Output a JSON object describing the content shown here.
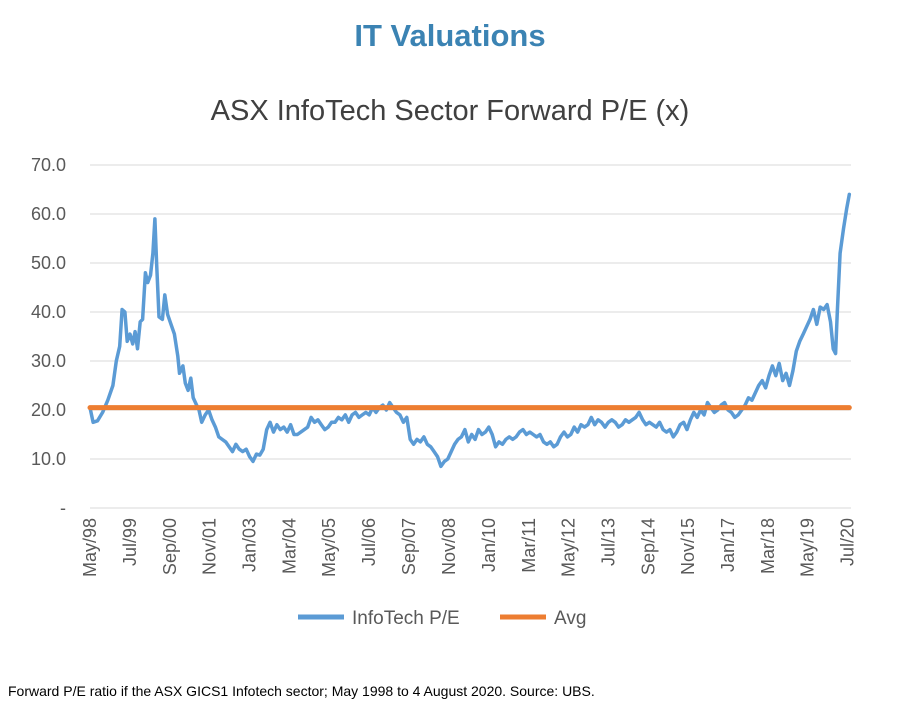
{
  "page_title": "IT Valuations",
  "caption": "Forward P/E ratio if the ASX GICS1 Infotech sector; May 1998 to 4 August 2020. Source: UBS.",
  "colors": {
    "series": "#5b9bd5",
    "avg": "#ed7d31",
    "title": "#3b83b3",
    "grid": "#d9d9d9",
    "text": "#595959"
  },
  "chart_data": {
    "type": "line",
    "title": "ASX InfoTech Sector Forward P/E (x)",
    "xlabel": "",
    "ylabel": "",
    "ylim": [
      0,
      70
    ],
    "xlim": [
      1998.33,
      2020.6
    ],
    "y_ticks": [
      {
        "value": 0,
        "label": "-"
      },
      {
        "value": 10,
        "label": "10.0"
      },
      {
        "value": 20,
        "label": "20.0"
      },
      {
        "value": 30,
        "label": "30.0"
      },
      {
        "value": 40,
        "label": "40.0"
      },
      {
        "value": 50,
        "label": "50.0"
      },
      {
        "value": 60,
        "label": "60.0"
      },
      {
        "value": 70,
        "label": "70.0"
      }
    ],
    "x_ticks": [
      {
        "t": 1998.33,
        "label": "May/98"
      },
      {
        "t": 1999.5,
        "label": "Jul/99"
      },
      {
        "t": 2000.67,
        "label": "Sep/00"
      },
      {
        "t": 2001.83,
        "label": "Nov/01"
      },
      {
        "t": 2003.0,
        "label": "Jan/03"
      },
      {
        "t": 2004.17,
        "label": "Mar/04"
      },
      {
        "t": 2005.33,
        "label": "May/05"
      },
      {
        "t": 2006.5,
        "label": "Jul/06"
      },
      {
        "t": 2007.67,
        "label": "Sep/07"
      },
      {
        "t": 2008.83,
        "label": "Nov/08"
      },
      {
        "t": 2010.0,
        "label": "Jan/10"
      },
      {
        "t": 2011.17,
        "label": "Mar/11"
      },
      {
        "t": 2012.33,
        "label": "May/12"
      },
      {
        "t": 2013.5,
        "label": "Jul/13"
      },
      {
        "t": 2014.67,
        "label": "Sep/14"
      },
      {
        "t": 2015.83,
        "label": "Nov/15"
      },
      {
        "t": 2017.0,
        "label": "Jan/17"
      },
      {
        "t": 2018.17,
        "label": "Mar/18"
      },
      {
        "t": 2019.33,
        "label": "May/19"
      },
      {
        "t": 2020.5,
        "label": "Jul/20"
      }
    ],
    "series": [
      {
        "name": "InfoTech P/E",
        "color": "#5b9bd5",
        "points": [
          [
            1998.33,
            20.5
          ],
          [
            1998.42,
            17.5
          ],
          [
            1998.55,
            17.8
          ],
          [
            1998.7,
            19.5
          ],
          [
            1998.85,
            22.0
          ],
          [
            1999.0,
            25.0
          ],
          [
            1999.1,
            30.0
          ],
          [
            1999.2,
            33.0
          ],
          [
            1999.27,
            40.5
          ],
          [
            1999.35,
            40.0
          ],
          [
            1999.42,
            34.0
          ],
          [
            1999.5,
            35.5
          ],
          [
            1999.58,
            33.5
          ],
          [
            1999.65,
            36.0
          ],
          [
            1999.72,
            32.5
          ],
          [
            1999.8,
            38.0
          ],
          [
            1999.87,
            38.5
          ],
          [
            1999.95,
            48.0
          ],
          [
            2000.02,
            46.0
          ],
          [
            2000.1,
            47.5
          ],
          [
            2000.17,
            52.0
          ],
          [
            2000.23,
            59.0
          ],
          [
            2000.28,
            50.0
          ],
          [
            2000.35,
            39.0
          ],
          [
            2000.45,
            38.5
          ],
          [
            2000.52,
            43.5
          ],
          [
            2000.6,
            39.5
          ],
          [
            2000.7,
            37.5
          ],
          [
            2000.8,
            35.5
          ],
          [
            2000.9,
            31.0
          ],
          [
            2000.95,
            27.5
          ],
          [
            2001.05,
            29.0
          ],
          [
            2001.12,
            25.5
          ],
          [
            2001.2,
            24.0
          ],
          [
            2001.28,
            26.5
          ],
          [
            2001.35,
            22.5
          ],
          [
            2001.45,
            21.0
          ],
          [
            2001.52,
            20.0
          ],
          [
            2001.6,
            17.5
          ],
          [
            2001.7,
            19.0
          ],
          [
            2001.8,
            20.0
          ],
          [
            2001.9,
            18.0
          ],
          [
            2002.0,
            16.5
          ],
          [
            2002.1,
            14.5
          ],
          [
            2002.2,
            14.0
          ],
          [
            2002.3,
            13.5
          ],
          [
            2002.4,
            12.5
          ],
          [
            2002.5,
            11.5
          ],
          [
            2002.6,
            13.0
          ],
          [
            2002.7,
            12.0
          ],
          [
            2002.8,
            11.5
          ],
          [
            2002.9,
            12.0
          ],
          [
            2003.0,
            10.5
          ],
          [
            2003.1,
            9.5
          ],
          [
            2003.2,
            11.0
          ],
          [
            2003.3,
            10.8
          ],
          [
            2003.4,
            12.0
          ],
          [
            2003.5,
            16.0
          ],
          [
            2003.6,
            17.5
          ],
          [
            2003.7,
            15.5
          ],
          [
            2003.8,
            17.0
          ],
          [
            2003.9,
            16.0
          ],
          [
            2004.0,
            16.5
          ],
          [
            2004.1,
            15.5
          ],
          [
            2004.2,
            17.0
          ],
          [
            2004.3,
            15.0
          ],
          [
            2004.4,
            15.0
          ],
          [
            2004.5,
            15.5
          ],
          [
            2004.6,
            16.0
          ],
          [
            2004.7,
            16.5
          ],
          [
            2004.8,
            18.5
          ],
          [
            2004.9,
            17.5
          ],
          [
            2005.0,
            18.0
          ],
          [
            2005.1,
            17.0
          ],
          [
            2005.2,
            16.0
          ],
          [
            2005.3,
            16.5
          ],
          [
            2005.4,
            17.5
          ],
          [
            2005.5,
            17.5
          ],
          [
            2005.6,
            18.5
          ],
          [
            2005.7,
            18.0
          ],
          [
            2005.8,
            19.0
          ],
          [
            2005.9,
            17.5
          ],
          [
            2006.0,
            19.0
          ],
          [
            2006.1,
            19.5
          ],
          [
            2006.2,
            18.5
          ],
          [
            2006.3,
            19.0
          ],
          [
            2006.4,
            19.5
          ],
          [
            2006.5,
            19.0
          ],
          [
            2006.6,
            20.5
          ],
          [
            2006.7,
            19.5
          ],
          [
            2006.8,
            20.5
          ],
          [
            2006.9,
            21.0
          ],
          [
            2007.0,
            20.0
          ],
          [
            2007.1,
            21.5
          ],
          [
            2007.2,
            20.5
          ],
          [
            2007.3,
            19.5
          ],
          [
            2007.4,
            19.0
          ],
          [
            2007.5,
            17.5
          ],
          [
            2007.6,
            18.5
          ],
          [
            2007.7,
            14.0
          ],
          [
            2007.8,
            13.0
          ],
          [
            2007.9,
            14.0
          ],
          [
            2008.0,
            13.5
          ],
          [
            2008.1,
            14.5
          ],
          [
            2008.2,
            13.0
          ],
          [
            2008.3,
            12.5
          ],
          [
            2008.4,
            11.5
          ],
          [
            2008.5,
            10.5
          ],
          [
            2008.6,
            8.5
          ],
          [
            2008.7,
            9.5
          ],
          [
            2008.8,
            10.0
          ],
          [
            2008.9,
            11.5
          ],
          [
            2009.0,
            13.0
          ],
          [
            2009.1,
            14.0
          ],
          [
            2009.2,
            14.5
          ],
          [
            2009.3,
            16.0
          ],
          [
            2009.4,
            13.5
          ],
          [
            2009.5,
            15.0
          ],
          [
            2009.6,
            14.0
          ],
          [
            2009.7,
            16.0
          ],
          [
            2009.8,
            15.0
          ],
          [
            2009.9,
            15.5
          ],
          [
            2010.0,
            16.5
          ],
          [
            2010.1,
            15.0
          ],
          [
            2010.2,
            12.5
          ],
          [
            2010.3,
            13.5
          ],
          [
            2010.4,
            13.0
          ],
          [
            2010.5,
            14.0
          ],
          [
            2010.6,
            14.5
          ],
          [
            2010.7,
            14.0
          ],
          [
            2010.8,
            14.5
          ],
          [
            2010.9,
            15.5
          ],
          [
            2011.0,
            16.0
          ],
          [
            2011.1,
            15.0
          ],
          [
            2011.2,
            15.5
          ],
          [
            2011.3,
            15.0
          ],
          [
            2011.4,
            14.5
          ],
          [
            2011.5,
            15.0
          ],
          [
            2011.6,
            13.5
          ],
          [
            2011.7,
            13.0
          ],
          [
            2011.8,
            13.5
          ],
          [
            2011.9,
            12.5
          ],
          [
            2012.0,
            13.0
          ],
          [
            2012.1,
            14.5
          ],
          [
            2012.2,
            15.5
          ],
          [
            2012.3,
            14.5
          ],
          [
            2012.4,
            15.0
          ],
          [
            2012.5,
            16.5
          ],
          [
            2012.6,
            15.5
          ],
          [
            2012.7,
            17.0
          ],
          [
            2012.8,
            16.5
          ],
          [
            2012.9,
            17.0
          ],
          [
            2013.0,
            18.5
          ],
          [
            2013.1,
            17.0
          ],
          [
            2013.2,
            18.0
          ],
          [
            2013.3,
            17.5
          ],
          [
            2013.4,
            16.5
          ],
          [
            2013.5,
            17.5
          ],
          [
            2013.6,
            18.0
          ],
          [
            2013.7,
            17.5
          ],
          [
            2013.8,
            16.5
          ],
          [
            2013.9,
            17.0
          ],
          [
            2014.0,
            18.0
          ],
          [
            2014.1,
            17.5
          ],
          [
            2014.2,
            18.0
          ],
          [
            2014.3,
            18.5
          ],
          [
            2014.4,
            19.5
          ],
          [
            2014.5,
            18.0
          ],
          [
            2014.6,
            17.0
          ],
          [
            2014.7,
            17.5
          ],
          [
            2014.8,
            17.0
          ],
          [
            2014.9,
            16.5
          ],
          [
            2015.0,
            17.5
          ],
          [
            2015.1,
            16.0
          ],
          [
            2015.2,
            15.5
          ],
          [
            2015.3,
            16.0
          ],
          [
            2015.4,
            14.5
          ],
          [
            2015.5,
            15.5
          ],
          [
            2015.6,
            17.0
          ],
          [
            2015.7,
            17.5
          ],
          [
            2015.8,
            16.0
          ],
          [
            2015.9,
            18.0
          ],
          [
            2016.0,
            19.5
          ],
          [
            2016.1,
            18.5
          ],
          [
            2016.2,
            20.0
          ],
          [
            2016.3,
            19.0
          ],
          [
            2016.4,
            21.5
          ],
          [
            2016.5,
            20.5
          ],
          [
            2016.6,
            19.5
          ],
          [
            2016.7,
            20.0
          ],
          [
            2016.8,
            21.0
          ],
          [
            2016.9,
            21.5
          ],
          [
            2017.0,
            20.0
          ],
          [
            2017.1,
            19.5
          ],
          [
            2017.2,
            18.5
          ],
          [
            2017.3,
            19.0
          ],
          [
            2017.4,
            20.0
          ],
          [
            2017.5,
            21.0
          ],
          [
            2017.6,
            22.5
          ],
          [
            2017.7,
            22.0
          ],
          [
            2017.8,
            23.5
          ],
          [
            2017.9,
            25.0
          ],
          [
            2018.0,
            26.0
          ],
          [
            2018.1,
            24.5
          ],
          [
            2018.2,
            27.0
          ],
          [
            2018.3,
            29.0
          ],
          [
            2018.4,
            27.0
          ],
          [
            2018.5,
            29.5
          ],
          [
            2018.6,
            26.0
          ],
          [
            2018.7,
            27.5
          ],
          [
            2018.8,
            25.0
          ],
          [
            2018.9,
            28.0
          ],
          [
            2019.0,
            32.0
          ],
          [
            2019.1,
            34.0
          ],
          [
            2019.2,
            35.5
          ],
          [
            2019.3,
            37.0
          ],
          [
            2019.4,
            38.5
          ],
          [
            2019.5,
            40.5
          ],
          [
            2019.6,
            37.5
          ],
          [
            2019.7,
            41.0
          ],
          [
            2019.8,
            40.5
          ],
          [
            2019.9,
            41.5
          ],
          [
            2020.0,
            38.0
          ],
          [
            2020.08,
            32.5
          ],
          [
            2020.15,
            31.5
          ],
          [
            2020.2,
            40.0
          ],
          [
            2020.28,
            52.0
          ],
          [
            2020.38,
            57.0
          ],
          [
            2020.47,
            61.0
          ],
          [
            2020.55,
            64.0
          ]
        ]
      },
      {
        "name": "Avg",
        "color": "#ed7d31",
        "points": [
          [
            1998.33,
            20.5
          ],
          [
            2020.55,
            20.5
          ]
        ]
      }
    ],
    "legend": [
      "InfoTech P/E",
      "Avg"
    ],
    "legend_position": "bottom",
    "grid": true
  }
}
